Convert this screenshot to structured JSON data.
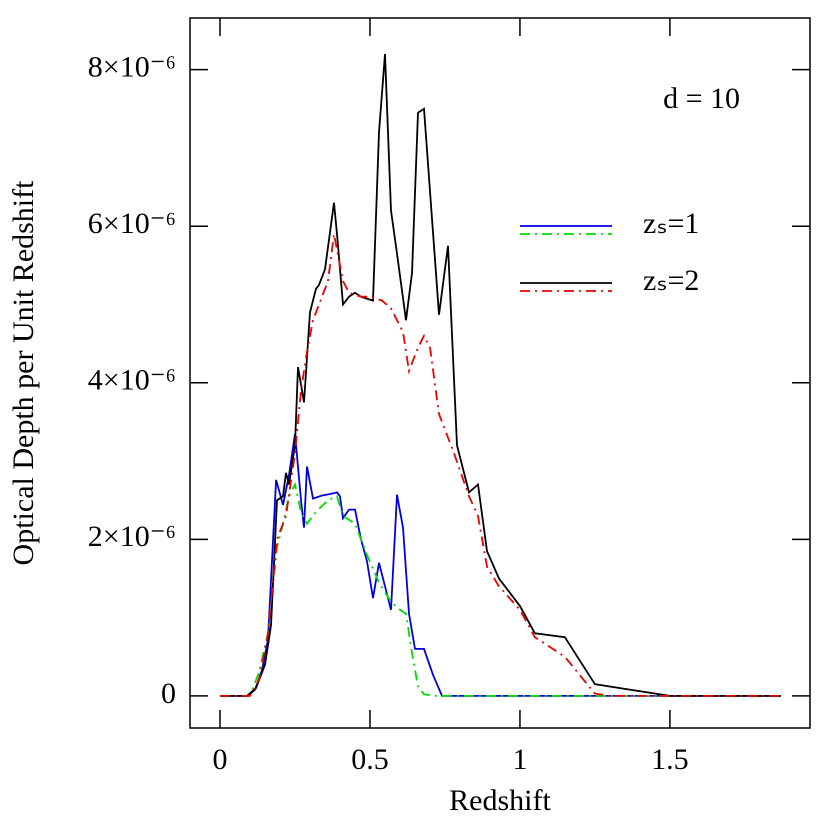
{
  "chart_data": {
    "type": "line",
    "xlabel": "Redshift",
    "ylabel": "Optical Depth per Unit Redshift",
    "annotation": "d  =  10",
    "xlim": [
      -0.1,
      1.967
    ],
    "ylim": [
      -4.1e-07,
      8.66e-06
    ],
    "xticks": [
      0,
      0.5,
      1,
      1.5
    ],
    "yticks": [
      0,
      {
        "value": 2e-06,
        "label": "2×10⁻⁶"
      },
      {
        "value": 4e-06,
        "label": "4×10⁻⁶"
      },
      {
        "value": 6e-06,
        "label": "6×10⁻⁶"
      },
      {
        "value": 8e-06,
        "label": "8×10⁻⁶"
      }
    ],
    "series": [
      {
        "name": "zₛ=1",
        "color": "#0000e0",
        "dash": "solid",
        "x": [
          0,
          0.093,
          0.117,
          0.14,
          0.16,
          0.187,
          0.21,
          0.23,
          0.25,
          0.27,
          0.28,
          0.29,
          0.31,
          0.34,
          0.37,
          0.39,
          0.4,
          0.41,
          0.43,
          0.45,
          0.47,
          0.49,
          0.51,
          0.53,
          0.55,
          0.57,
          0.59,
          0.61,
          0.63,
          0.65,
          0.68,
          0.71,
          0.74,
          1.87
        ],
        "values": [
          0,
          0,
          8e-08,
          3.3e-07,
          7.2e-07,
          2.76e-06,
          2.44e-06,
          2.82e-06,
          3.35e-06,
          2.5e-06,
          2.15e-06,
          2.93e-06,
          2.52e-06,
          2.56e-06,
          2.58e-06,
          2.6e-06,
          2.55e-06,
          2.27e-06,
          2.38e-06,
          2.38e-06,
          2e-06,
          1.72e-06,
          1.25e-06,
          1.7e-06,
          1.4e-06,
          1.1e-06,
          2.57e-06,
          2.15e-06,
          1.05e-06,
          6e-07,
          6e-07,
          2.7e-07,
          0,
          0
        ]
      },
      {
        "color": "#00dd00",
        "dash": "dashdot",
        "x": [
          0,
          0.1,
          0.13,
          0.16,
          0.19,
          0.21,
          0.23,
          0.25,
          0.27,
          0.29,
          0.32,
          0.36,
          0.39,
          0.41,
          0.45,
          0.49,
          0.53,
          0.57,
          0.6,
          0.62,
          0.64,
          0.66,
          0.68,
          0.72,
          1.87
        ],
        "values": [
          0,
          0,
          3e-07,
          8e-07,
          1.9e-06,
          2.2e-06,
          2.55e-06,
          2.7e-06,
          2.35e-06,
          2.2e-06,
          2.35e-06,
          2.5e-06,
          2.55e-06,
          2.3e-06,
          2.2e-06,
          1.8e-06,
          1.45e-06,
          1.2e-06,
          1.1e-06,
          1.05e-06,
          5.5e-07,
          1.2e-07,
          2e-08,
          0,
          0
        ]
      },
      {
        "name": "zₛ=2",
        "color": "#000000",
        "dash": "solid",
        "x": [
          0,
          0.09,
          0.12,
          0.15,
          0.17,
          0.19,
          0.21,
          0.22,
          0.23,
          0.25,
          0.26,
          0.28,
          0.3,
          0.32,
          0.33,
          0.35,
          0.38,
          0.39,
          0.41,
          0.43,
          0.45,
          0.47,
          0.51,
          0.53,
          0.55,
          0.57,
          0.59,
          0.62,
          0.64,
          0.66,
          0.68,
          0.73,
          0.76,
          0.79,
          0.83,
          0.86,
          0.89,
          0.93,
          1.0,
          1.05,
          1.15,
          1.25,
          1.5,
          1.87
        ],
        "values": [
          0,
          0,
          1e-07,
          4e-07,
          9e-07,
          2.5e-06,
          2.55e-06,
          2.85e-06,
          2.7e-06,
          3.2e-06,
          4.2e-06,
          3.75e-06,
          4.9e-06,
          5.2e-06,
          5.25e-06,
          5.45e-06,
          6.3e-06,
          5.9e-06,
          5e-06,
          5.1e-06,
          5.15e-06,
          5.1e-06,
          5.05e-06,
          7.2e-06,
          8.2e-06,
          6.2e-06,
          5.65e-06,
          4.8e-06,
          5.4e-06,
          7.45e-06,
          7.5e-06,
          4.87e-06,
          5.75e-06,
          3.2e-06,
          2.6e-06,
          2.7e-06,
          1.85e-06,
          1.5e-06,
          1.15e-06,
          8e-07,
          7.5e-07,
          1.5e-07,
          0,
          0
        ]
      },
      {
        "color": "#ee0000",
        "dash": "dashdot",
        "x": [
          0,
          0.1,
          0.13,
          0.16,
          0.19,
          0.22,
          0.25,
          0.27,
          0.29,
          0.31,
          0.34,
          0.36,
          0.38,
          0.41,
          0.43,
          0.47,
          0.5,
          0.54,
          0.57,
          0.61,
          0.63,
          0.66,
          0.68,
          0.7,
          0.73,
          0.78,
          0.83,
          0.86,
          0.89,
          0.93,
          1.0,
          1.05,
          1.15,
          1.25,
          1.3,
          1.87
        ],
        "values": [
          0,
          0,
          2e-07,
          8e-07,
          2e-06,
          2.3e-06,
          3.1e-06,
          3.9e-06,
          4.4e-06,
          4.8e-06,
          5.1e-06,
          5.3e-06,
          5.9e-06,
          5.3e-06,
          5.15e-06,
          5.1e-06,
          5.1e-06,
          5.05e-06,
          4.95e-06,
          4.65e-06,
          4.15e-06,
          4.45e-06,
          4.6e-06,
          4.45e-06,
          3.6e-06,
          3.1e-06,
          2.55e-06,
          2.3e-06,
          1.65e-06,
          1.4e-06,
          1.1e-06,
          7.5e-07,
          5e-07,
          3e-08,
          0,
          0
        ]
      }
    ]
  }
}
